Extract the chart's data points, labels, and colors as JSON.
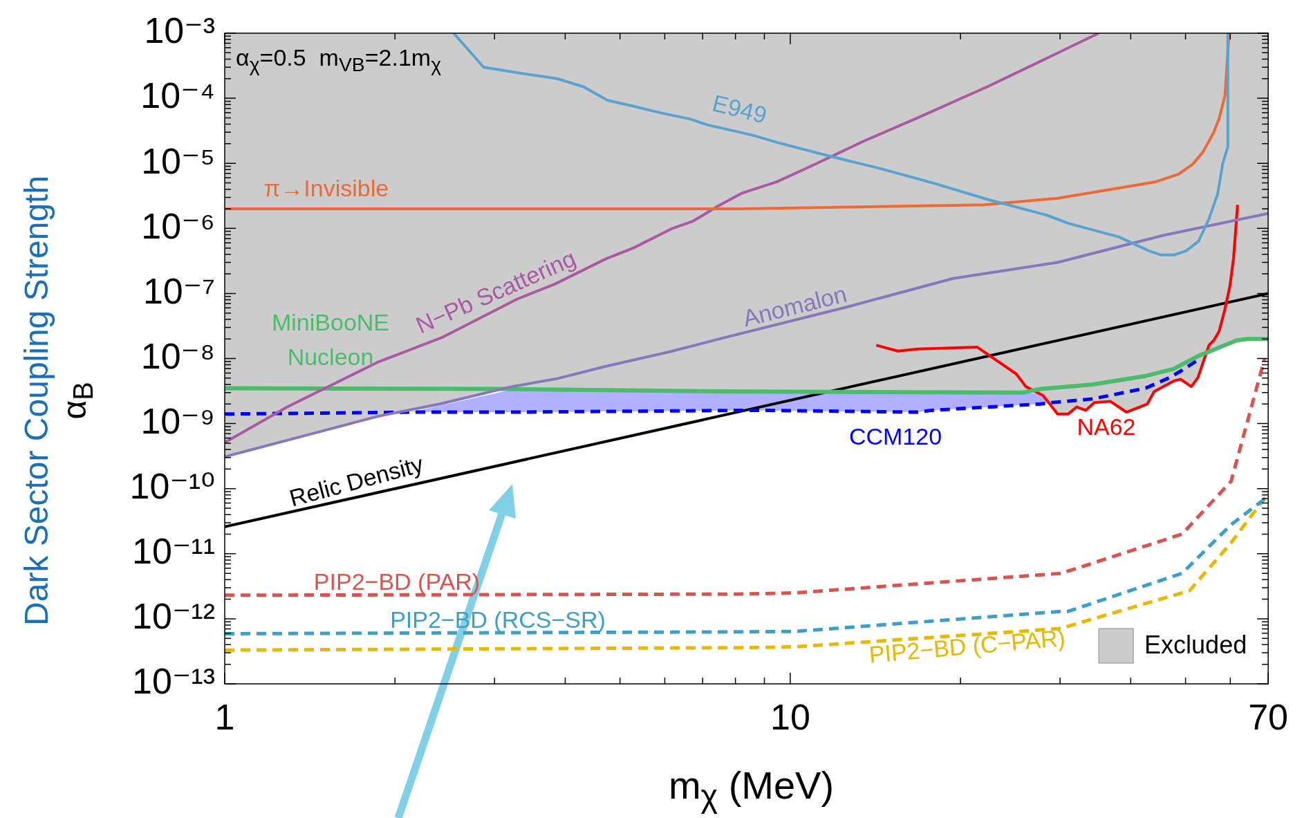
{
  "chart_data": {
    "type": "line",
    "xlabel": "m$_{χ}$ (MeV)",
    "ylabel": "Dark Sector Coupling Strength\nα$_{B}$",
    "annotations": [
      "α$_{χ}$=0.5  m$_{V}$$_{B}$=2.1m$_{χ}$"
    ],
    "log": "xy",
    "marker": "none",
    "legend": "bottom right",
    "xlim": [
      1,
      70
    ],
    "xticks": [
      1,
      {
        "value": 2,
        "label": null
      },
      {
        "value": 3,
        "label": null
      },
      {
        "value": 4,
        "label": null
      },
      {
        "value": 5,
        "label": null
      },
      {
        "value": 6,
        "label": null
      },
      {
        "value": 7,
        "label": null
      },
      {
        "value": 8,
        "label": null
      },
      {
        "value": 9,
        "label": null
      },
      10,
      {
        "value": 20,
        "label": null
      },
      {
        "value": 30,
        "label": null
      },
      {
        "value": 40,
        "label": null
      },
      {
        "value": 50,
        "label": null
      },
      {
        "value": 60,
        "label": null
      },
      70
    ],
    "ylim": [
      1e-13,
      0.001
    ],
    "yticks": [
      {
        "value": 1e-13,
        "label": "10⁻¹³"
      },
      {
        "value": 2e-13,
        "label": null
      },
      {
        "value": 3e-13,
        "label": null
      },
      {
        "value": 4e-13,
        "label": null
      },
      {
        "value": 5e-13,
        "label": null
      },
      {
        "value": 6e-13,
        "label": null
      },
      {
        "value": 7e-13,
        "label": null
      },
      {
        "value": 8e-13,
        "label": null
      },
      {
        "value": 9e-13,
        "label": null
      },
      {
        "value": 1e-12,
        "label": "10⁻¹²"
      },
      {
        "value": 2e-12,
        "label": null
      },
      {
        "value": 3e-12,
        "label": null
      },
      {
        "value": 4e-12,
        "label": null
      },
      {
        "value": 5e-12,
        "label": null
      },
      {
        "value": 6e-12,
        "label": null
      },
      {
        "value": 7e-12,
        "label": null
      },
      {
        "value": 8e-12,
        "label": null
      },
      {
        "value": 9e-12,
        "label": null
      },
      {
        "value": 1e-11,
        "label": "10⁻¹¹"
      },
      {
        "value": 2e-11,
        "label": null
      },
      {
        "value": 3e-11,
        "label": null
      },
      {
        "value": 4e-11,
        "label": null
      },
      {
        "value": 5e-11,
        "label": null
      },
      {
        "value": 6e-11,
        "label": null
      },
      {
        "value": 7e-11,
        "label": null
      },
      {
        "value": 8e-11,
        "label": null
      },
      {
        "value": 9e-11,
        "label": null
      },
      {
        "value": 1e-10,
        "label": "10⁻¹⁰"
      },
      {
        "value": 2e-10,
        "label": null
      },
      {
        "value": 3e-10,
        "label": null
      },
      {
        "value": 4e-10,
        "label": null
      },
      {
        "value": 5e-10,
        "label": null
      },
      {
        "value": 6e-10,
        "label": null
      },
      {
        "value": 7e-10,
        "label": null
      },
      {
        "value": 8e-10,
        "label": null
      },
      {
        "value": 9e-10,
        "label": null
      },
      {
        "value": 1e-09,
        "label": "10⁻⁹"
      },
      {
        "value": 2e-09,
        "label": null
      },
      {
        "value": 3e-09,
        "label": null
      },
      {
        "value": 4e-09,
        "label": null
      },
      {
        "value": 5e-09,
        "label": null
      },
      {
        "value": 6e-09,
        "label": null
      },
      {
        "value": 7e-09,
        "label": null
      },
      {
        "value": 8e-09,
        "label": null
      },
      {
        "value": 9e-09,
        "label": null
      },
      {
        "value": 1e-08,
        "label": "10⁻⁸"
      },
      {
        "value": 2e-08,
        "label": null
      },
      {
        "value": 3e-08,
        "label": null
      },
      {
        "value": 4e-08,
        "label": null
      },
      {
        "value": 5e-08,
        "label": null
      },
      {
        "value": 6e-08,
        "label": null
      },
      {
        "value": 7e-08,
        "label": null
      },
      {
        "value": 8e-08,
        "label": null
      },
      {
        "value": 9e-08,
        "label": null
      },
      {
        "value": 1e-07,
        "label": "10⁻⁷"
      },
      {
        "value": 2e-07,
        "label": null
      },
      {
        "value": 3e-07,
        "label": null
      },
      {
        "value": 4e-07,
        "label": null
      },
      {
        "value": 5e-07,
        "label": null
      },
      {
        "value": 6e-07,
        "label": null
      },
      {
        "value": 7e-07,
        "label": null
      },
      {
        "value": 8e-07,
        "label": null
      },
      {
        "value": 9e-07,
        "label": null
      },
      {
        "value": 1e-06,
        "label": "10⁻⁶"
      },
      {
        "value": 2e-06,
        "label": null
      },
      {
        "value": 3e-06,
        "label": null
      },
      {
        "value": 4e-06,
        "label": null
      },
      {
        "value": 5e-06,
        "label": null
      },
      {
        "value": 6e-06,
        "label": null
      },
      {
        "value": 7e-06,
        "label": null
      },
      {
        "value": 8e-06,
        "label": null
      },
      {
        "value": 9e-06,
        "label": null
      },
      {
        "value": 1e-05,
        "label": "10⁻⁵"
      },
      {
        "value": 2e-05,
        "label": null
      },
      {
        "value": 3e-05,
        "label": null
      },
      {
        "value": 4e-05,
        "label": null
      },
      {
        "value": 5e-05,
        "label": null
      },
      {
        "value": 6e-05,
        "label": null
      },
      {
        "value": 7e-05,
        "label": null
      },
      {
        "value": 8e-05,
        "label": null
      },
      {
        "value": 9e-05,
        "label": null
      },
      {
        "value": 0.0001,
        "label": "10⁻⁴"
      },
      {
        "value": 0.0002,
        "label": null
      },
      {
        "value": 0.0003,
        "label": null
      },
      {
        "value": 0.0004,
        "label": null
      },
      {
        "value": 0.0005,
        "label": null
      },
      {
        "value": 0.0006,
        "label": null
      },
      {
        "value": 0.0007,
        "label": null
      },
      {
        "value": 0.0008,
        "label": null
      },
      {
        "value": 0.0009,
        "label": null
      },
      {
        "value": 0.001,
        "label": "10⁻³"
      }
    ],
    "series": [
      {
        "name": "Excluded",
        "type": "area",
        "color": "#cccccc",
        "x": [
          1,
          1,
          1.87,
          2.4,
          3.13,
          8.2,
          25.8,
          26.5,
          28,
          29.7,
          31,
          32.1,
          33.3,
          34.5,
          36.8,
          39.3,
          42.8,
          44,
          47.6,
          49,
          51.2,
          52.6,
          53.8,
          56.5,
          61.6,
          64.2,
          70,
          70
        ],
        "values": [
          0.001,
          3.1e-10,
          1.3e-09,
          2e-09,
          3.4e-09,
          3.1e-09,
          3e-09,
          3.1e-09,
          2.7e-09,
          1.4e-09,
          1.4e-09,
          1.8e-09,
          1.6e-09,
          2.1e-09,
          2.2e-09,
          1.5e-09,
          2e-09,
          3.1e-09,
          4.5e-09,
          4.8e-09,
          3.7e-09,
          5.1e-09,
          1e-08,
          1.4e-08,
          1.9e-08,
          2e-08,
          2e-08,
          0.001
        ]
      },
      {
        "name": "E949",
        "color": "#5ba3cf",
        "x": [
          2.54,
          2.87,
          3.36,
          3.87,
          4.31,
          4.75,
          5.26,
          5.93,
          6.65,
          7.14,
          8.59,
          9.47,
          11.7,
          14.6,
          18,
          22.3,
          28.4,
          31,
          38.1,
          43.1,
          45.3,
          47.6,
          50.1,
          52.7,
          55,
          57,
          58.2,
          59.4,
          59.4
        ],
        "values": [
          0.001,
          0.0003,
          0.00024,
          0.0002,
          0.00015,
          9.3e-05,
          7.6e-05,
          5.9e-05,
          4.8e-05,
          3.9e-05,
          2.7e-05,
          2.1e-05,
          1.3e-05,
          8.1e-06,
          4.9e-06,
          2.8e-06,
          1.6e-06,
          1.2e-06,
          7.4e-07,
          4.5e-07,
          3.9e-07,
          3.9e-07,
          4.5e-07,
          6.3e-07,
          1.4e-06,
          3.4e-06,
          1e-05,
          1.8e-05,
          0.001
        ]
      },
      {
        "name": "π→Invisible",
        "color": "#ee6a34",
        "x": [
          1,
          8.2,
          22,
          29.7,
          44.3,
          48.6,
          51.5,
          53.7,
          56.1,
          57.3,
          58.7,
          59.7
        ],
        "values": [
          2e-06,
          2e-06,
          2.3e-06,
          2.9e-06,
          5.2e-06,
          6.8e-06,
          9.7e-06,
          1.5e-05,
          3e-05,
          4.8e-05,
          0.00011,
          0.001
        ]
      },
      {
        "name": "N−Pb Scattering",
        "color": "#a95aa3",
        "x": [
          1,
          1.29,
          1.86,
          2.42,
          3.29,
          3.84,
          4.72,
          5.28,
          6.19,
          6.74,
          7.45,
          8.23,
          9.47,
          10.9,
          13.5,
          16.8,
          22.3,
          27.7,
          35.1
        ],
        "values": [
          5.1e-10,
          1.8e-09,
          8.7e-09,
          2.1e-08,
          8.2e-08,
          1.4e-07,
          3.4e-07,
          5e-07,
          1e-06,
          1.3e-06,
          2.2e-06,
          3.5e-06,
          5.2e-06,
          9.1e-06,
          2.2e-05,
          5e-05,
          0.00015,
          0.00037,
          0.001
        ]
      },
      {
        "name": "Anomalon",
        "color": "#8878bb",
        "x": [
          1,
          1.87,
          2.4,
          3.22,
          3.87,
          4.72,
          6.19,
          7.66,
          12.6,
          19.4,
          29.7,
          45.6,
          70
        ],
        "values": [
          3.1e-10,
          1.3e-09,
          2e-09,
          3.7e-09,
          4.9e-09,
          7.6e-09,
          1.3e-08,
          2.1e-08,
          6.2e-08,
          1.7e-07,
          3e-07,
          7.8e-07,
          1.7e-06
        ]
      },
      {
        "name": "MiniBooNE Nucleon",
        "color": "#4cbb6c",
        "x": [
          1,
          3.13,
          8.2,
          25.8,
          27.7,
          34.3,
          42.5,
          47.6,
          52.7,
          56.5,
          61.6,
          64.2,
          70
        ],
        "values": [
          3.5e-09,
          3.4e-09,
          3.1e-09,
          3e-09,
          3.4e-09,
          4e-09,
          5.4e-09,
          6.9e-09,
          1.1e-08,
          1.4e-08,
          1.9e-08,
          2e-08,
          2e-08
        ]
      },
      {
        "name": "CCM120",
        "color": "#0000ff",
        "line_style": "dashed",
        "x": [
          1,
          2.13,
          3.26,
          8.59,
          16.8,
          17.8,
          27.7,
          29,
          34.3,
          42.5,
          46.9,
          49.3,
          52.6
        ],
        "values": [
          1.4e-09,
          1.5e-09,
          1.5e-09,
          1.6e-09,
          1.5e-09,
          1.6e-09,
          2e-09,
          2.1e-09,
          2.4e-09,
          3.5e-09,
          5.1e-09,
          6.6e-09,
          9.5e-09
        ],
        "lower": [
          null,
          1.5e-09,
          1.5e-09,
          1.6e-09,
          1.5e-09,
          1.6e-09,
          2e-09,
          2.1e-09,
          null,
          null,
          null,
          null,
          null
        ],
        "upper": [
          null,
          1.5e-09,
          3.4e-09,
          3.1e-09,
          3e-09,
          3e-09,
          2.9e-09,
          2.1e-09,
          null,
          null,
          null,
          null,
          null
        ]
      },
      {
        "name": "NA62",
        "color": "#ff0000",
        "x": [
          14.2,
          15.5,
          16.8,
          21.4,
          25.1,
          26.1,
          28,
          29.7,
          31,
          32.1,
          33.3,
          34.5,
          36.8,
          39.3,
          42.8,
          44,
          47.6,
          49,
          51.2,
          52.6,
          55,
          56.1,
          57.3,
          58.6,
          59.9,
          60.8,
          61.8
        ],
        "values": [
          1.6e-08,
          1.3e-08,
          1.4e-08,
          1.5e-08,
          5.8e-09,
          3.7e-09,
          2.7e-09,
          1.4e-09,
          1.4e-09,
          1.8e-09,
          1.6e-09,
          2.1e-09,
          2.2e-09,
          1.5e-09,
          2e-09,
          3.1e-09,
          4.5e-09,
          4.8e-09,
          3.7e-09,
          5.1e-09,
          1.6e-08,
          1.9e-08,
          2.6e-08,
          5.4e-08,
          1.3e-07,
          3.5e-07,
          2.3e-06
        ]
      },
      {
        "name": "Relic Density",
        "color": "#000000",
        "x": [
          1,
          70
        ],
        "values": [
          2.6e-11,
          1e-07
        ]
      },
      {
        "name": "PIP2−BD (PAR)",
        "color": "#d9534f",
        "line_style": "dashed",
        "x": [
          1,
          8.2,
          10.2,
          30.2,
          31,
          49.3,
          60.2,
          69
        ],
        "values": [
          2.3e-12,
          2.4e-12,
          2.5e-12,
          5e-12,
          5.4e-12,
          2e-11,
          1.3e-10,
          1e-08
        ]
      },
      {
        "name": "PIP2−BD (RCS−SR)",
        "color": "#3d9fc8",
        "line_style": "dashed",
        "x": [
          1,
          8.2,
          10.2,
          30.2,
          31,
          49.3,
          60.2,
          69.4
        ],
        "values": [
          5.9e-13,
          6.3e-13,
          6.4e-13,
          1.3e-12,
          1.3e-12,
          5e-12,
          2.8e-11,
          7.2e-11
        ]
      },
      {
        "name": "PIP2−BD (C−PAR)",
        "color": "#e6b800",
        "line_style": "dashed",
        "x": [
          1,
          8.2,
          10.2,
          30.2,
          31,
          50.8,
          59.9,
          69.4
        ],
        "values": [
          3.3e-13,
          3.6e-13,
          3.7e-13,
          7.1e-13,
          7.7e-13,
          2.7e-12,
          1.4e-11,
          7.6e-11
        ]
      }
    ]
  }
}
